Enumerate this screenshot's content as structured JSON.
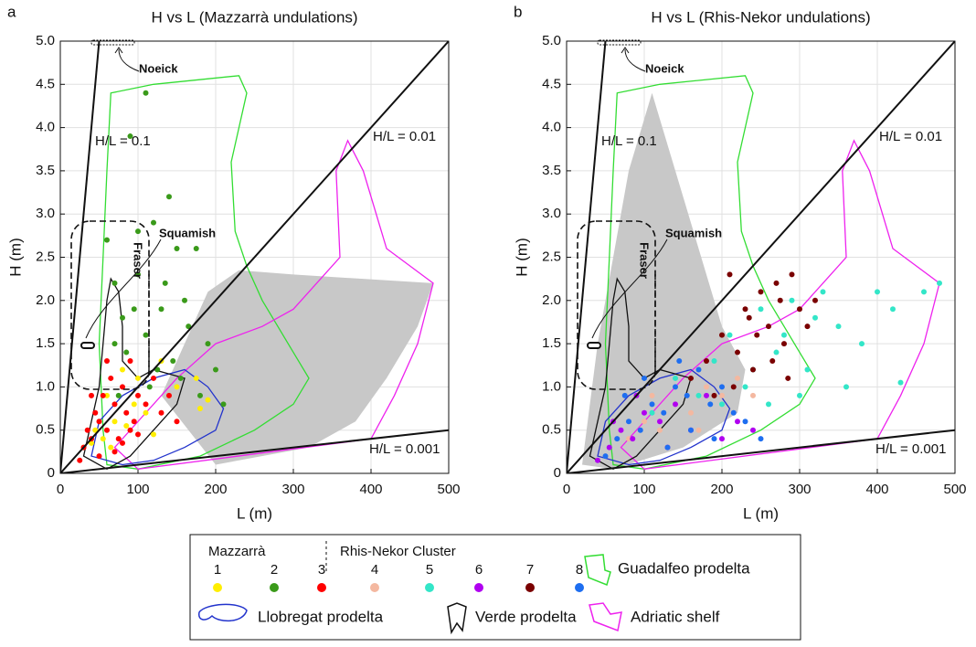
{
  "chart_data": [
    {
      "type": "scatter",
      "panel": "a",
      "title": "H vs L (Mazzarrà undulations)",
      "x_label": "L (m)",
      "y_label": "H (m)",
      "xlim": [
        0,
        500
      ],
      "ylim": [
        0,
        5
      ],
      "xticks": [
        0,
        100,
        200,
        300,
        400,
        500
      ],
      "yticks": [
        0,
        0.5,
        {
          "value": 1,
          "label": "1.0"
        },
        1.5,
        {
          "value": 2,
          "label": "2.0"
        },
        2.5,
        {
          "value": 3,
          "label": "3.0"
        },
        3.5,
        {
          "value": 4,
          "label": "4.0"
        },
        4.5,
        {
          "value": 5,
          "label": "5.0"
        }
      ],
      "grid": true,
      "reference_lines": [
        {
          "label": "H/L = 0.1",
          "slope": 0.1
        },
        {
          "label": "H/L = 0.01",
          "slope": 0.01
        },
        {
          "label": "H/L = 0.001",
          "slope": 0.001
        }
      ],
      "annotations": [
        "Noeick",
        "Squamish",
        "Fraser"
      ],
      "regions": [
        {
          "fill": "#c8c8c8",
          "x": [
            130,
            190,
            230,
            300,
            480,
            460,
            420,
            380,
            320,
            200
          ],
          "values": [
            0.9,
            2.1,
            2.35,
            2.3,
            2.2,
            1.7,
            1.1,
            0.6,
            0.3,
            0.1
          ]
        },
        {
          "name": "Guadalfeo prodelta",
          "color": "#33dd33",
          "x": [
            55,
            50,
            55,
            60,
            65,
            120,
            230,
            240,
            220,
            225,
            240,
            260,
            280,
            300,
            320,
            300,
            250,
            180,
            100,
            60
          ],
          "values": [
            0.5,
            1.5,
            2.5,
            3.5,
            4.4,
            4.5,
            4.6,
            4.4,
            3.6,
            2.8,
            2.4,
            2.0,
            1.7,
            1.4,
            1.1,
            0.8,
            0.5,
            0.2,
            0.05,
            0.1
          ]
        },
        {
          "name": "Adriatic shelf",
          "color": "#ee22ee",
          "x": [
            70,
            100,
            400,
            430,
            460,
            480,
            420,
            390,
            370,
            355,
            360,
            330,
            300,
            260,
            200,
            150
          ],
          "values": [
            0.3,
            0.05,
            0.4,
            0.9,
            1.5,
            2.2,
            2.6,
            3.5,
            3.85,
            3.5,
            2.5,
            2.2,
            1.9,
            1.7,
            1.5,
            1.1
          ]
        },
        {
          "name": "Llobregat prodelta",
          "color": "#2233cc",
          "x": [
            40,
            50,
            80,
            120,
            160,
            190,
            210,
            200,
            160,
            120,
            80
          ],
          "values": [
            0.2,
            0.6,
            0.9,
            1.1,
            1.2,
            1.0,
            0.75,
            0.5,
            0.3,
            0.15,
            0.1
          ]
        },
        {
          "name": "Verde prodelta",
          "color": "#111111",
          "x": [
            30,
            40,
            50,
            55,
            60,
            65,
            75,
            80,
            80,
            100,
            120,
            160,
            150,
            120,
            90,
            60
          ],
          "values": [
            0.2,
            0.6,
            1.0,
            1.5,
            2.0,
            2.25,
            2.1,
            1.7,
            1.3,
            1.1,
            1.2,
            1.1,
            0.8,
            0.5,
            0.2,
            0.05
          ]
        }
      ],
      "series": [
        {
          "name": "1",
          "color": "#ffee00",
          "x": [
            30,
            45,
            55,
            60,
            70,
            80,
            95,
            110,
            130,
            150,
            175,
            190,
            40,
            65,
            85,
            100,
            120,
            180
          ],
          "values": [
            0.3,
            0.5,
            0.4,
            0.9,
            0.6,
            1.2,
            0.8,
            0.7,
            1.3,
            1.0,
            1.1,
            0.85,
            0.35,
            0.3,
            0.55,
            1.1,
            0.45,
            0.75
          ]
        },
        {
          "name": "2",
          "color": "#3a9a1a",
          "x": [
            60,
            70,
            80,
            90,
            100,
            110,
            120,
            130,
            140,
            150,
            160,
            175,
            190,
            85,
            95,
            110,
            125,
            145,
            165,
            180,
            70,
            100,
            115,
            200,
            210,
            75,
            135,
            155
          ],
          "values": [
            2.7,
            2.2,
            1.8,
            3.9,
            2.3,
            4.4,
            2.9,
            1.9,
            3.2,
            2.6,
            2.0,
            2.6,
            1.5,
            1.4,
            1.9,
            1.6,
            1.2,
            1.3,
            1.7,
            0.9,
            1.5,
            2.8,
            1.0,
            1.2,
            0.8,
            0.9,
            2.2,
            1.1
          ]
        },
        {
          "name": "3",
          "color": "#ff0000",
          "x": [
            25,
            30,
            35,
            40,
            45,
            50,
            55,
            60,
            65,
            70,
            75,
            80,
            85,
            90,
            95,
            100,
            110,
            120,
            130,
            140,
            150,
            60,
            70,
            80,
            90,
            100,
            50,
            40
          ],
          "values": [
            0.15,
            0.3,
            0.5,
            0.4,
            0.7,
            0.6,
            0.9,
            0.5,
            1.1,
            0.8,
            0.4,
            1.0,
            0.7,
            1.3,
            0.6,
            0.9,
            0.8,
            1.1,
            0.7,
            0.9,
            0.6,
            1.3,
            0.25,
            0.35,
            0.5,
            0.45,
            0.2,
            0.9
          ]
        }
      ]
    },
    {
      "type": "scatter",
      "panel": "b",
      "title": "H vs L (Rhis-Nekor undulations)",
      "x_label": "L (m)",
      "y_label": "H (m)",
      "xlim": [
        0,
        500
      ],
      "ylim": [
        0,
        5
      ],
      "xticks": [
        0,
        100,
        200,
        300,
        400,
        500
      ],
      "yticks": [
        0,
        0.5,
        {
          "value": 1,
          "label": "1.0"
        },
        1.5,
        {
          "value": 2,
          "label": "2.0"
        },
        2.5,
        {
          "value": 3,
          "label": "3.0"
        },
        3.5,
        {
          "value": 4,
          "label": "4.0"
        },
        4.5,
        {
          "value": 5,
          "label": "5.0"
        }
      ],
      "grid": true,
      "reference_lines": [
        {
          "label": "H/L = 0.1",
          "slope": 0.1
        },
        {
          "label": "H/L = 0.01",
          "slope": 0.01
        },
        {
          "label": "H/L = 0.001",
          "slope": 0.001
        }
      ],
      "annotations": [
        "Noeick",
        "Squamish",
        "Fraser"
      ],
      "regions": [
        {
          "fill": "#c8c8c8",
          "x": [
            20,
            40,
            80,
            110,
            150,
            200,
            230,
            220,
            150,
            60
          ],
          "values": [
            0.1,
            1.5,
            3.5,
            4.4,
            3.2,
            1.7,
            1.2,
            0.7,
            0.3,
            0.05
          ]
        },
        {
          "color": "#33dd33",
          "x": [
            55,
            50,
            55,
            60,
            65,
            120,
            230,
            240,
            220,
            225,
            240,
            260,
            280,
            300,
            320,
            300,
            250,
            180,
            100,
            60
          ],
          "values": [
            0.5,
            1.5,
            2.5,
            3.5,
            4.4,
            4.5,
            4.6,
            4.4,
            3.6,
            2.8,
            2.4,
            2.0,
            1.7,
            1.4,
            1.1,
            0.8,
            0.5,
            0.2,
            0.05,
            0.1
          ]
        },
        {
          "color": "#ee22ee",
          "x": [
            70,
            100,
            400,
            430,
            460,
            480,
            420,
            390,
            370,
            355,
            360,
            330,
            300,
            260,
            200,
            150
          ],
          "values": [
            0.3,
            0.05,
            0.4,
            0.9,
            1.5,
            2.2,
            2.6,
            3.5,
            3.85,
            3.5,
            2.5,
            2.2,
            1.9,
            1.7,
            1.5,
            1.1
          ]
        },
        {
          "color": "#2233cc",
          "x": [
            40,
            50,
            80,
            120,
            160,
            190,
            210,
            200,
            160,
            120,
            80
          ],
          "values": [
            0.2,
            0.6,
            0.9,
            1.1,
            1.2,
            1.0,
            0.75,
            0.5,
            0.3,
            0.15,
            0.1
          ]
        },
        {
          "color": "#111111",
          "x": [
            30,
            40,
            50,
            55,
            60,
            65,
            75,
            80,
            80,
            100,
            120,
            160,
            150,
            120,
            90,
            60
          ],
          "values": [
            0.2,
            0.6,
            1.0,
            1.5,
            2.0,
            2.25,
            2.1,
            1.7,
            1.3,
            1.1,
            1.2,
            1.1,
            0.8,
            0.5,
            0.2,
            0.05
          ]
        }
      ],
      "series": [
        {
          "name": "4",
          "color": "#f4b8a0",
          "x": [
            80,
            100,
            120,
            140,
            160,
            180,
            200,
            220,
            240,
            130,
            170,
            110
          ],
          "values": [
            0.4,
            0.6,
            0.5,
            0.8,
            0.7,
            1.0,
            0.9,
            1.1,
            0.9,
            0.3,
            0.5,
            0.9
          ]
        },
        {
          "name": "5",
          "color": "#33e6c8",
          "x": [
            110,
            140,
            170,
            190,
            210,
            230,
            250,
            270,
            290,
            310,
            330,
            350,
            380,
            400,
            430,
            460,
            480,
            300,
            260,
            240,
            320,
            360,
            280,
            200,
            420
          ],
          "values": [
            0.7,
            1.1,
            0.9,
            1.3,
            1.6,
            1.0,
            1.9,
            1.4,
            2.0,
            1.2,
            2.1,
            1.7,
            1.5,
            2.1,
            1.05,
            2.1,
            2.2,
            0.9,
            0.8,
            1.2,
            1.8,
            1.0,
            1.6,
            0.8,
            1.9
          ]
        },
        {
          "name": "6",
          "color": "#b000f0",
          "x": [
            40,
            55,
            70,
            85,
            100,
            120,
            140,
            160,
            180,
            200,
            220,
            240,
            90,
            130,
            60
          ],
          "values": [
            0.15,
            0.3,
            0.5,
            0.4,
            0.7,
            0.6,
            0.8,
            0.5,
            0.9,
            0.4,
            0.6,
            0.5,
            0.9,
            0.3,
            0.6
          ]
        },
        {
          "name": "7",
          "color": "#7a0000",
          "x": [
            160,
            180,
            200,
            210,
            220,
            230,
            240,
            250,
            260,
            270,
            280,
            290,
            300,
            310,
            320,
            190,
            215,
            245,
            265,
            285,
            235,
            275
          ],
          "values": [
            1.1,
            1.3,
            1.6,
            2.3,
            1.4,
            1.9,
            1.2,
            2.1,
            1.7,
            2.2,
            1.5,
            2.3,
            1.9,
            1.7,
            2.0,
            0.9,
            1.0,
            1.6,
            1.3,
            1.1,
            1.8,
            2.0
          ]
        },
        {
          "name": "8",
          "color": "#1e6ef0",
          "x": [
            50,
            65,
            80,
            95,
            110,
            125,
            140,
            155,
            170,
            185,
            200,
            215,
            230,
            250,
            100,
            130,
            160,
            190,
            75,
            145
          ],
          "values": [
            0.2,
            0.4,
            0.6,
            0.5,
            0.8,
            0.7,
            1.0,
            0.9,
            1.2,
            0.8,
            1.0,
            0.7,
            0.6,
            0.4,
            1.1,
            0.3,
            0.5,
            0.4,
            0.9,
            1.3
          ]
        }
      ]
    }
  ],
  "legend": {
    "groups": [
      "Mazzarrà",
      "Rhis-Nekor Cluster"
    ]
  }
}
